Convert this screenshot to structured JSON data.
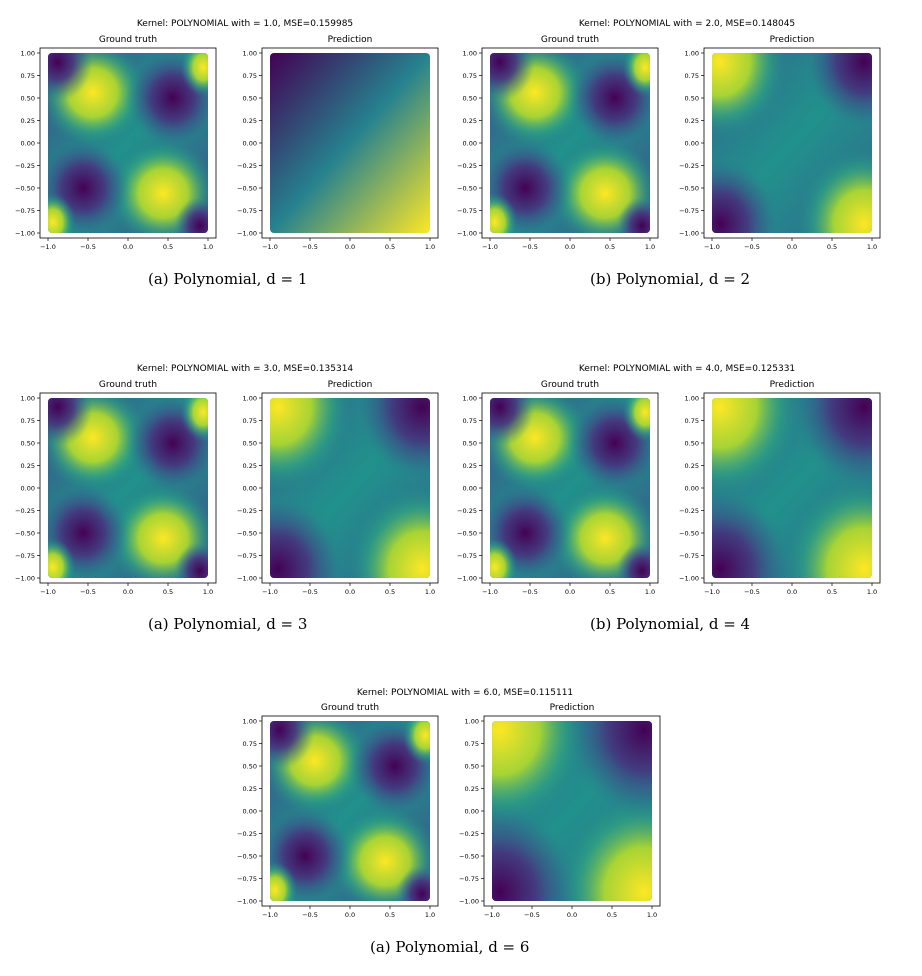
{
  "colors": {
    "viridis_low": "#440154",
    "viridis_mid": "#21918c",
    "viridis_high": "#fde725"
  },
  "figure_text": {
    "ground_truth_title": "Ground truth",
    "prediction_title": "Prediction"
  },
  "figures": [
    {
      "suptitle": "Kernel: POLYNOMIAL with  = 1.0, MSE=0.159985",
      "caption": "(a) Polynomial, d = 1"
    },
    {
      "suptitle": "Kernel: POLYNOMIAL with  = 2.0, MSE=0.148045",
      "caption": "(b) Polynomial, d = 2"
    },
    {
      "suptitle": "Kernel: POLYNOMIAL with  = 3.0, MSE=0.135314",
      "caption": "(a) Polynomial, d = 3"
    },
    {
      "suptitle": "Kernel: POLYNOMIAL with  = 4.0, MSE=0.125331",
      "caption": "(b) Polynomial, d = 4"
    },
    {
      "suptitle": "Kernel: POLYNOMIAL with  = 6.0, MSE=0.115111",
      "caption": "(a) Polynomial, d = 6"
    }
  ],
  "chart_data": [
    {
      "type": "heatmap",
      "title": "Ground truth",
      "degree": 1,
      "colormap": "viridis",
      "xlim": [
        -1,
        1
      ],
      "ylim": [
        -1,
        1
      ],
      "xticks": [
        "−1.0",
        "−0.5",
        "0.0",
        "0.5",
        "1.0"
      ],
      "yticks": [
        "1.00",
        "0.75",
        "0.50",
        "0.25",
        "0.00",
        "−0.25",
        "−0.50",
        "−0.75",
        "−1.00"
      ]
    },
    {
      "type": "heatmap",
      "title": "Prediction",
      "degree": 1,
      "colormap": "viridis",
      "mse": 0.159985,
      "xlim": [
        -1,
        1
      ],
      "ylim": [
        -1,
        1
      ],
      "xticks": [
        "−1.0",
        "−0.5",
        "0.0",
        "0.5",
        "1.0"
      ],
      "yticks": [
        "1.00",
        "0.75",
        "0.50",
        "0.25",
        "0.00",
        "−0.25",
        "−0.50",
        "−0.75",
        "−1.00"
      ]
    },
    {
      "type": "heatmap",
      "title": "Ground truth",
      "degree": 2,
      "colormap": "viridis",
      "xlim": [
        -1,
        1
      ],
      "ylim": [
        -1,
        1
      ],
      "xticks": [
        "−1.0",
        "−0.5",
        "0.0",
        "0.5",
        "1.0"
      ],
      "yticks": [
        "1.00",
        "0.75",
        "0.50",
        "0.25",
        "0.00",
        "−0.25",
        "−0.50",
        "−0.75",
        "−1.00"
      ]
    },
    {
      "type": "heatmap",
      "title": "Prediction",
      "degree": 2,
      "colormap": "viridis",
      "mse": 0.148045,
      "xlim": [
        -1,
        1
      ],
      "ylim": [
        -1,
        1
      ],
      "xticks": [
        "−1.0",
        "−0.5",
        "0.0",
        "0.5",
        "1.0"
      ],
      "yticks": [
        "1.00",
        "0.75",
        "0.50",
        "0.25",
        "0.00",
        "−0.25",
        "−0.50",
        "−0.75",
        "−1.00"
      ]
    },
    {
      "type": "heatmap",
      "title": "Ground truth",
      "degree": 3,
      "colormap": "viridis",
      "xlim": [
        -1,
        1
      ],
      "ylim": [
        -1,
        1
      ],
      "xticks": [
        "−1.0",
        "−0.5",
        "0.0",
        "0.5",
        "1.0"
      ],
      "yticks": [
        "1.00",
        "0.75",
        "0.50",
        "0.25",
        "0.00",
        "−0.25",
        "−0.50",
        "−0.75",
        "−1.00"
      ]
    },
    {
      "type": "heatmap",
      "title": "Prediction",
      "degree": 3,
      "colormap": "viridis",
      "mse": 0.135314,
      "xlim": [
        -1,
        1
      ],
      "ylim": [
        -1,
        1
      ],
      "xticks": [
        "−1.0",
        "−0.5",
        "0.0",
        "0.5",
        "1.0"
      ],
      "yticks": [
        "1.00",
        "0.75",
        "0.50",
        "0.25",
        "0.00",
        "−0.25",
        "−0.50",
        "−0.75",
        "−1.00"
      ]
    },
    {
      "type": "heatmap",
      "title": "Ground truth",
      "degree": 4,
      "colormap": "viridis",
      "xlim": [
        -1,
        1
      ],
      "ylim": [
        -1,
        1
      ],
      "xticks": [
        "−1.0",
        "−0.5",
        "0.0",
        "0.5",
        "1.0"
      ],
      "yticks": [
        "1.00",
        "0.75",
        "0.50",
        "0.25",
        "0.00",
        "−0.25",
        "−0.50",
        "−0.75",
        "−1.00"
      ]
    },
    {
      "type": "heatmap",
      "title": "Prediction",
      "degree": 4,
      "colormap": "viridis",
      "mse": 0.125331,
      "xlim": [
        -1,
        1
      ],
      "ylim": [
        -1,
        1
      ],
      "xticks": [
        "−1.0",
        "−0.5",
        "0.0",
        "0.5",
        "1.0"
      ],
      "yticks": [
        "1.00",
        "0.75",
        "0.50",
        "0.25",
        "0.00",
        "−0.25",
        "−0.50",
        "−0.75",
        "−1.00"
      ]
    },
    {
      "type": "heatmap",
      "title": "Ground truth",
      "degree": 6,
      "colormap": "viridis",
      "xlim": [
        -1,
        1
      ],
      "ylim": [
        -1,
        1
      ],
      "xticks": [
        "−1.0",
        "−0.5",
        "0.0",
        "0.5",
        "1.0"
      ],
      "yticks": [
        "1.00",
        "0.75",
        "0.50",
        "0.25",
        "0.00",
        "−0.25",
        "−0.50",
        "−0.75",
        "−1.00"
      ]
    },
    {
      "type": "heatmap",
      "title": "Prediction",
      "degree": 6,
      "colormap": "viridis",
      "mse": 0.115111,
      "xlim": [
        -1,
        1
      ],
      "ylim": [
        -1,
        1
      ],
      "xticks": [
        "−1.0",
        "−0.5",
        "0.0",
        "0.5",
        "1.0"
      ],
      "yticks": [
        "1.00",
        "0.75",
        "0.50",
        "0.25",
        "0.00",
        "−0.25",
        "−0.50",
        "−0.75",
        "−1.00"
      ]
    }
  ]
}
